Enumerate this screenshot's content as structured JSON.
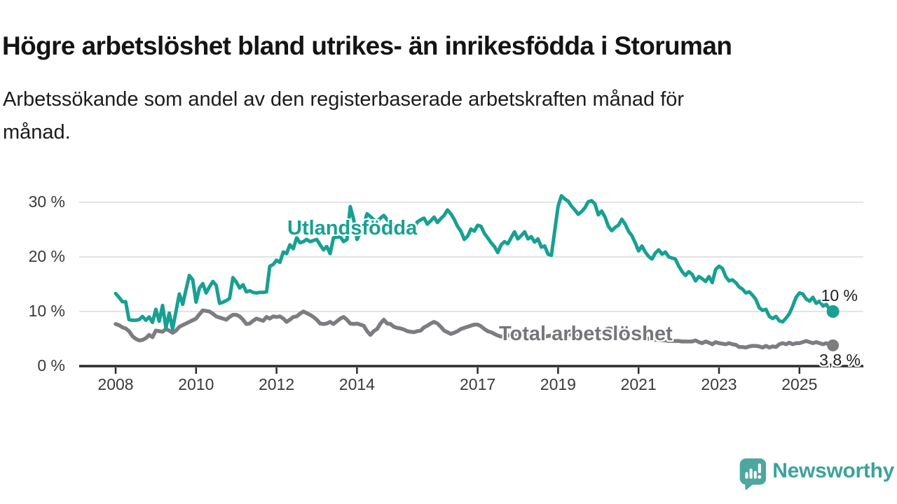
{
  "title": "Högre arbetslöshet bland utrikes- än inrikesfödda i Storuman",
  "subtitle": {
    "text": "Arbetssökande som andel av den registerbaserade arbetskraften månad för månad.",
    "lines": [
      "Arbetssökande som andel av den registerbaserade arbetskraften månad för",
      "månad."
    ]
  },
  "chart_data": {
    "type": "line",
    "x_start": "2008-01",
    "x_end": "2025-11",
    "x_interval": "monthly",
    "grid": true,
    "ylim": [
      0,
      32
    ],
    "y_ticks": [
      {
        "value": 30,
        "label": "30 %"
      },
      {
        "value": 20,
        "label": "20 %"
      },
      {
        "value": 10,
        "label": "10 %"
      },
      {
        "value": 0,
        "label": "0 %"
      }
    ],
    "x_ticks": [
      {
        "year": 2008,
        "label": "2008"
      },
      {
        "year": 2010,
        "label": "2010"
      },
      {
        "year": 2012,
        "label": "2012"
      },
      {
        "year": 2014,
        "label": "2014"
      },
      {
        "year": 2017,
        "label": "2017"
      },
      {
        "year": 2019,
        "label": "2019"
      },
      {
        "year": 2021,
        "label": "2021"
      },
      {
        "year": 2023,
        "label": "2023"
      },
      {
        "year": 2025,
        "label": "2025"
      }
    ],
    "legend_position": "inline-annotations",
    "series": [
      {
        "name": "Utlandsfödda",
        "color": "#18a092",
        "end_value_label": "10 %",
        "values": [
          13.3,
          12.6,
          11.8,
          11.8,
          8.5,
          8.4,
          8.4,
          8.5,
          9.1,
          8.4,
          9.0,
          8.0,
          10.4,
          8.2,
          11.1,
          7.0,
          9.7,
          6.8,
          10.0,
          13.2,
          11.3,
          14.0,
          16.6,
          15.8,
          11.7,
          14.3,
          15.1,
          13.4,
          14.5,
          15.5,
          14.8,
          11.5,
          11.7,
          12.0,
          12.4,
          16.2,
          15.4,
          14.3,
          14.9,
          13.6,
          13.8,
          13.5,
          13.4,
          13.5,
          13.5,
          13.6,
          18.3,
          18.6,
          19.4,
          19.0,
          20.9,
          20.6,
          22.2,
          21.5,
          23.5,
          22.6,
          22.8,
          23.2,
          22.8,
          23.0,
          23.2,
          22.2,
          21.3,
          21.9,
          20.6,
          23.5,
          23.6,
          23.7,
          22.8,
          23.2,
          29.2,
          26.9,
          23.2,
          24.5,
          26.0,
          27.9,
          27.4,
          26.8,
          26.5,
          27.1,
          27.6,
          26.8,
          26.2,
          25.8,
          26.0,
          25.5,
          26.2,
          25.0,
          24.6,
          25.2,
          26.4,
          26.8,
          27.1,
          26.0,
          26.6,
          27.3,
          26.3,
          27.0,
          27.6,
          28.6,
          27.9,
          26.9,
          25.6,
          24.7,
          23.2,
          23.8,
          25.1,
          24.7,
          25.8,
          25.6,
          24.3,
          23.5,
          22.6,
          21.9,
          20.8,
          22.2,
          22.8,
          22.4,
          23.5,
          24.6,
          23.3,
          23.9,
          24.6,
          23.3,
          23.7,
          22.7,
          23.3,
          21.8,
          22.0,
          20.5,
          20.3,
          24.8,
          29.3,
          31.2,
          30.6,
          30.2,
          29.3,
          28.6,
          27.8,
          28.3,
          29.0,
          30.1,
          30.3,
          29.7,
          27.7,
          28.4,
          27.3,
          25.6,
          24.8,
          25.4,
          25.8,
          26.9,
          26.0,
          24.7,
          23.9,
          22.6,
          21.1,
          22.0,
          20.9,
          20.1,
          19.6,
          20.7,
          21.3,
          20.5,
          20.9,
          20.0,
          19.8,
          19.6,
          18.3,
          17.3,
          16.6,
          17.3,
          16.8,
          15.6,
          16.4,
          16.0,
          15.5,
          16.4,
          15.3,
          17.7,
          18.3,
          17.9,
          16.4,
          15.6,
          15.8,
          15.3,
          14.5,
          14.1,
          13.4,
          13.6,
          13.0,
          12.2,
          10.7,
          10.2,
          10.4,
          9.1,
          8.7,
          9.1,
          8.3,
          8.1,
          8.8,
          9.6,
          11.0,
          12.6,
          13.4,
          13.2,
          12.3,
          11.9,
          12.6,
          11.5,
          11.9,
          11.0,
          11.3,
          10.4,
          10.0
        ]
      },
      {
        "name": "Total arbetslöshet",
        "color": "#7d7c80",
        "end_value_label": "3,8 %",
        "values": [
          7.7,
          7.5,
          7.1,
          6.9,
          6.4,
          5.5,
          5.0,
          4.7,
          4.8,
          5.1,
          5.7,
          5.3,
          6.5,
          6.4,
          6.3,
          6.8,
          6.5,
          6.1,
          6.5,
          7.2,
          7.5,
          7.8,
          8.1,
          8.4,
          8.7,
          9.5,
          10.2,
          10.1,
          10.0,
          9.6,
          9.1,
          8.9,
          8.7,
          8.5,
          9.0,
          9.4,
          9.4,
          9.1,
          8.5,
          7.7,
          7.8,
          8.3,
          8.7,
          8.5,
          8.3,
          9.0,
          8.7,
          9.1,
          9.0,
          9.1,
          8.7,
          8.1,
          8.5,
          9.0,
          9.1,
          9.6,
          10.0,
          9.7,
          9.4,
          9.0,
          8.5,
          7.8,
          7.7,
          7.8,
          8.1,
          7.7,
          8.2,
          8.7,
          9.0,
          8.5,
          7.8,
          7.7,
          7.8,
          7.6,
          7.4,
          6.4,
          5.7,
          6.4,
          6.8,
          7.8,
          8.5,
          7.8,
          7.7,
          7.2,
          7.0,
          6.9,
          6.7,
          6.4,
          6.3,
          6.2,
          6.4,
          6.5,
          7.1,
          7.4,
          7.8,
          8.1,
          7.8,
          7.2,
          6.5,
          6.2,
          5.9,
          6.1,
          6.4,
          6.8,
          7.0,
          7.2,
          7.4,
          7.6,
          7.6,
          7.3,
          6.8,
          6.4,
          6.2,
          5.9,
          5.6,
          5.4,
          5.5,
          5.6,
          5.7,
          5.8,
          5.9,
          6.0,
          5.8,
          5.6,
          5.4,
          5.3,
          5.2,
          5.3,
          5.4,
          5.5,
          5.6,
          5.7,
          5.8,
          5.9,
          6.0,
          5.9,
          5.7,
          5.6,
          5.5,
          5.6,
          5.7,
          5.8,
          5.9,
          6.0,
          6.1,
          6.3,
          6.6,
          6.9,
          6.8,
          6.6,
          6.4,
          6.2,
          6.0,
          5.8,
          5.6,
          5.4,
          5.3,
          5.2,
          5.1,
          5.0,
          4.9,
          4.8,
          4.8,
          4.7,
          4.7,
          4.6,
          4.6,
          4.6,
          4.6,
          4.5,
          4.5,
          4.5,
          4.5,
          4.7,
          4.4,
          4.2,
          4.5,
          4.3,
          4.0,
          4.4,
          4.2,
          4.1,
          4.0,
          4.2,
          4.0,
          3.9,
          3.5,
          3.5,
          3.4,
          3.6,
          3.7,
          3.7,
          3.6,
          3.4,
          3.7,
          3.4,
          3.6,
          3.5,
          4.0,
          4.2,
          4.0,
          4.3,
          4.0,
          4.2,
          4.2,
          4.4,
          4.6,
          4.4,
          4.2,
          4.4,
          4.2,
          4.0,
          4.2,
          3.9,
          3.8
        ]
      }
    ]
  },
  "footer": {
    "brand": "Newsworthy",
    "logo_icon": "bar-chart-speech-bubble-icon"
  },
  "colors": {
    "foreign_born_line": "#18a092",
    "total_line": "#7d7c80",
    "total_label": "#76757a",
    "grid": "#dadada",
    "axis": "#2b2b2b",
    "tick_text": "#3a3a3a",
    "title_text": "#141414",
    "end_label_text": "#1d1d1d",
    "brand_icon": "#4da79f",
    "brand_text": "#3ba39b",
    "background": "#ffffff"
  }
}
